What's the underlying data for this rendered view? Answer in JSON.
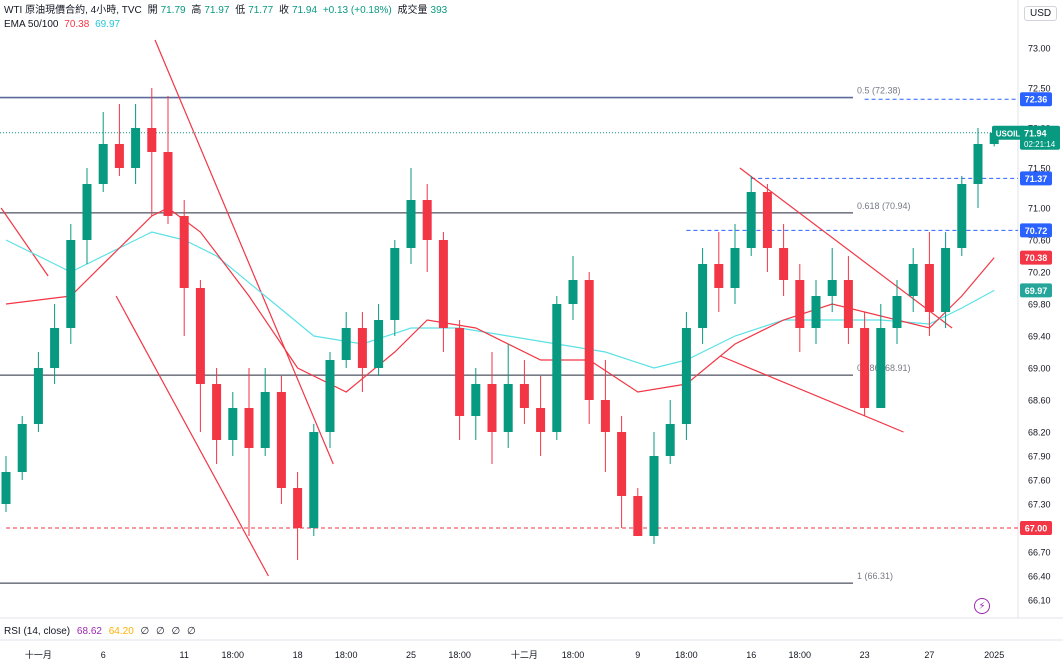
{
  "header": {
    "symbol_line": "WTI 原油現價合約, 4小時, TVC",
    "open_label": "開",
    "open": "71.79",
    "high_label": "高",
    "high": "71.97",
    "low_label": "低",
    "low": "71.77",
    "close_label": "收",
    "close": "71.94",
    "change": "+0.13 (+0.18%)",
    "volume_label": "成交量",
    "volume": "393",
    "ema_label": "EMA 50/100",
    "ema50_value": "70.38",
    "ema100_value": "69.97"
  },
  "currency": "USD",
  "rsi": {
    "label": "RSI (14, close)",
    "value1": "68.62",
    "value2": "64.20",
    "na1": "∅",
    "na2": "∅",
    "na3": "∅",
    "na4": "∅"
  },
  "colors": {
    "up": "#089981",
    "down": "#f23645",
    "ema50": "#f23645",
    "ema100": "#5ce1e6",
    "fib": "#787b86",
    "blue_level": "#2962ff",
    "red_level": "#f23645",
    "trend": "#f23645"
  },
  "chart_data": {
    "type": "candlestick",
    "y_range": [
      66.0,
      73.3
    ],
    "y_ticks": [
      "73.00",
      "72.50",
      "72.00",
      "71.50",
      "71.00",
      "70.60",
      "70.20",
      "69.80",
      "69.40",
      "69.00",
      "68.60",
      "68.20",
      "67.90",
      "67.60",
      "67.30",
      "66.70",
      "66.40",
      "66.10"
    ],
    "y_tick_values": [
      73.0,
      72.5,
      72.0,
      71.5,
      71.0,
      70.6,
      70.2,
      69.8,
      69.4,
      69.0,
      68.6,
      68.2,
      67.9,
      67.6,
      67.3,
      66.7,
      66.4,
      66.1
    ],
    "x_labels": [
      "十一月",
      "6",
      "11",
      "18:00",
      "18",
      "18:00",
      "25",
      "18:00",
      "十二月",
      "18:00",
      "9",
      "18:00",
      "16",
      "18:00",
      "23",
      "27",
      "2025"
    ],
    "x_label_index": [
      2,
      6,
      11,
      14,
      18,
      21,
      25,
      28,
      32,
      35,
      39,
      42,
      46,
      49,
      53,
      57,
      61
    ],
    "fib_levels": [
      {
        "label": "0.5 (72.38)",
        "value": 72.38
      },
      {
        "label": "0.618 (70.94)",
        "value": 70.94
      },
      {
        "label": "0.786 (68.91)",
        "value": 68.91
      },
      {
        "label": "1 (66.31)",
        "value": 66.31
      }
    ],
    "price_tags": [
      {
        "label": "72.36",
        "value": 72.36,
        "color": "#2962ff"
      },
      {
        "label": "71.37",
        "value": 71.37,
        "color": "#2962ff"
      },
      {
        "label": "70.72",
        "value": 70.72,
        "color": "#2962ff"
      },
      {
        "label": "70.38",
        "value": 70.38,
        "color": "#f23645"
      },
      {
        "label": "69.97",
        "value": 69.97,
        "color": "#26a69a"
      },
      {
        "label": "67.00",
        "value": 67.0,
        "color": "#f23645"
      }
    ],
    "last_price_tag": {
      "name": "USOIL",
      "price": "71.94",
      "countdown": "02:21:14",
      "value": 71.94
    },
    "dashed_levels": [
      {
        "value": 72.36,
        "from": 53,
        "color": "#2962ff"
      },
      {
        "value": 71.37,
        "from": 46,
        "color": "#2962ff"
      },
      {
        "value": 70.72,
        "from": 42,
        "color": "#2962ff"
      },
      {
        "value": 67.0,
        "from": 0,
        "color": "#f23645"
      }
    ],
    "trendlines": [
      {
        "from": [
          9.2,
          73.1
        ],
        "to": [
          20.2,
          67.8
        ]
      },
      {
        "from": [
          6.8,
          69.9
        ],
        "to": [
          16.2,
          66.4
        ]
      },
      {
        "from": [
          -0.3,
          71.0
        ],
        "to": [
          2.6,
          70.15
        ]
      },
      {
        "from": [
          45.3,
          71.5
        ],
        "to": [
          58.4,
          69.5
        ]
      },
      {
        "from": [
          44.1,
          69.15
        ],
        "to": [
          55.4,
          68.2
        ]
      }
    ],
    "candles": [
      [
        67.3,
        67.7,
        67.9,
        67.2
      ],
      [
        67.7,
        68.3,
        68.4,
        67.6
      ],
      [
        68.3,
        69.0,
        69.2,
        68.2
      ],
      [
        69.0,
        69.5,
        69.8,
        68.8
      ],
      [
        69.5,
        70.6,
        70.8,
        69.3
      ],
      [
        70.6,
        71.3,
        71.5,
        70.3
      ],
      [
        71.3,
        71.8,
        72.2,
        71.2
      ],
      [
        71.8,
        71.5,
        72.3,
        71.4
      ],
      [
        71.5,
        72.0,
        72.3,
        71.3
      ],
      [
        72.0,
        71.7,
        72.5,
        70.9
      ],
      [
        71.7,
        70.9,
        72.4,
        70.8
      ],
      [
        70.9,
        70.0,
        71.1,
        69.4
      ],
      [
        70.0,
        68.8,
        70.1,
        68.2
      ],
      [
        68.8,
        68.1,
        69.0,
        67.8
      ],
      [
        68.1,
        68.5,
        68.7,
        67.9
      ],
      [
        68.5,
        68.0,
        69.0,
        66.9
      ],
      [
        68.0,
        68.7,
        69.0,
        67.9
      ],
      [
        68.7,
        67.5,
        68.9,
        67.3
      ],
      [
        67.5,
        67.0,
        67.7,
        66.6
      ],
      [
        67.0,
        68.2,
        68.3,
        66.9
      ],
      [
        68.2,
        69.1,
        69.2,
        68.0
      ],
      [
        69.1,
        69.5,
        69.7,
        69.0
      ],
      [
        69.5,
        69.0,
        69.7,
        68.7
      ],
      [
        69.0,
        69.6,
        69.8,
        68.9
      ],
      [
        69.6,
        70.5,
        70.6,
        69.4
      ],
      [
        70.5,
        71.1,
        71.5,
        70.3
      ],
      [
        71.1,
        70.6,
        71.3,
        70.2
      ],
      [
        70.6,
        69.5,
        70.7,
        69.2
      ],
      [
        69.5,
        68.4,
        69.6,
        68.1
      ],
      [
        68.4,
        68.8,
        69.0,
        68.1
      ],
      [
        68.8,
        68.2,
        69.2,
        67.8
      ],
      [
        68.2,
        68.8,
        69.3,
        68.0
      ],
      [
        68.8,
        68.5,
        69.1,
        68.3
      ],
      [
        68.5,
        68.2,
        68.9,
        67.9
      ],
      [
        68.2,
        69.8,
        69.9,
        68.1
      ],
      [
        69.8,
        70.1,
        70.4,
        69.6
      ],
      [
        70.1,
        68.6,
        70.2,
        68.3
      ],
      [
        68.6,
        68.2,
        69.1,
        67.7
      ],
      [
        68.2,
        67.4,
        68.4,
        67.0
      ],
      [
        67.4,
        66.9,
        67.5,
        66.9
      ],
      [
        66.9,
        67.9,
        68.2,
        66.8
      ],
      [
        67.9,
        68.3,
        68.6,
        67.8
      ],
      [
        68.3,
        69.5,
        69.7,
        68.1
      ],
      [
        69.5,
        70.3,
        70.5,
        69.3
      ],
      [
        70.3,
        70.0,
        70.7,
        69.7
      ],
      [
        70.0,
        70.5,
        70.8,
        69.8
      ],
      [
        70.5,
        71.2,
        71.4,
        70.4
      ],
      [
        71.2,
        70.5,
        71.3,
        70.2
      ],
      [
        70.5,
        70.1,
        70.8,
        69.9
      ],
      [
        70.1,
        69.5,
        70.3,
        69.2
      ],
      [
        69.5,
        69.9,
        70.1,
        69.3
      ],
      [
        69.9,
        70.1,
        70.5,
        69.7
      ],
      [
        70.1,
        69.5,
        70.4,
        69.3
      ],
      [
        69.5,
        68.5,
        69.7,
        68.4
      ],
      [
        68.5,
        69.5,
        69.8,
        68.5
      ],
      [
        69.5,
        69.9,
        70.1,
        69.3
      ],
      [
        69.9,
        70.3,
        70.5,
        69.7
      ],
      [
        70.3,
        69.7,
        70.7,
        69.4
      ],
      [
        69.7,
        70.5,
        70.7,
        69.5
      ],
      [
        70.5,
        71.3,
        71.4,
        70.4
      ],
      [
        71.3,
        71.8,
        72.0,
        71.0
      ],
      [
        71.8,
        71.94,
        71.97,
        71.77
      ]
    ],
    "ema50": [
      [
        0,
        69.8
      ],
      [
        4,
        69.9
      ],
      [
        7,
        70.5
      ],
      [
        9,
        70.9
      ],
      [
        10,
        71.0
      ],
      [
        12,
        70.7
      ],
      [
        15,
        69.9
      ],
      [
        18,
        69.0
      ],
      [
        21,
        68.7
      ],
      [
        24,
        69.2
      ],
      [
        26,
        69.6
      ],
      [
        29,
        69.5
      ],
      [
        33,
        69.1
      ],
      [
        36,
        69.1
      ],
      [
        39,
        68.7
      ],
      [
        42,
        68.8
      ],
      [
        45,
        69.3
      ],
      [
        48,
        69.6
      ],
      [
        51,
        69.8
      ],
      [
        53,
        69.7
      ],
      [
        55,
        69.6
      ],
      [
        57,
        69.5
      ],
      [
        59,
        69.9
      ],
      [
        61,
        70.38
      ]
    ],
    "ema100": [
      [
        0,
        70.6
      ],
      [
        4,
        70.2
      ],
      [
        7,
        70.5
      ],
      [
        9,
        70.7
      ],
      [
        11,
        70.6
      ],
      [
        13,
        70.4
      ],
      [
        16,
        69.9
      ],
      [
        19,
        69.4
      ],
      [
        22,
        69.3
      ],
      [
        25,
        69.5
      ],
      [
        28,
        69.5
      ],
      [
        31,
        69.4
      ],
      [
        34,
        69.3
      ],
      [
        37,
        69.2
      ],
      [
        40,
        69.0
      ],
      [
        42,
        69.1
      ],
      [
        45,
        69.4
      ],
      [
        48,
        69.6
      ],
      [
        51,
        69.6
      ],
      [
        54,
        69.6
      ],
      [
        57,
        69.55
      ],
      [
        59,
        69.75
      ],
      [
        61,
        69.97
      ]
    ]
  }
}
